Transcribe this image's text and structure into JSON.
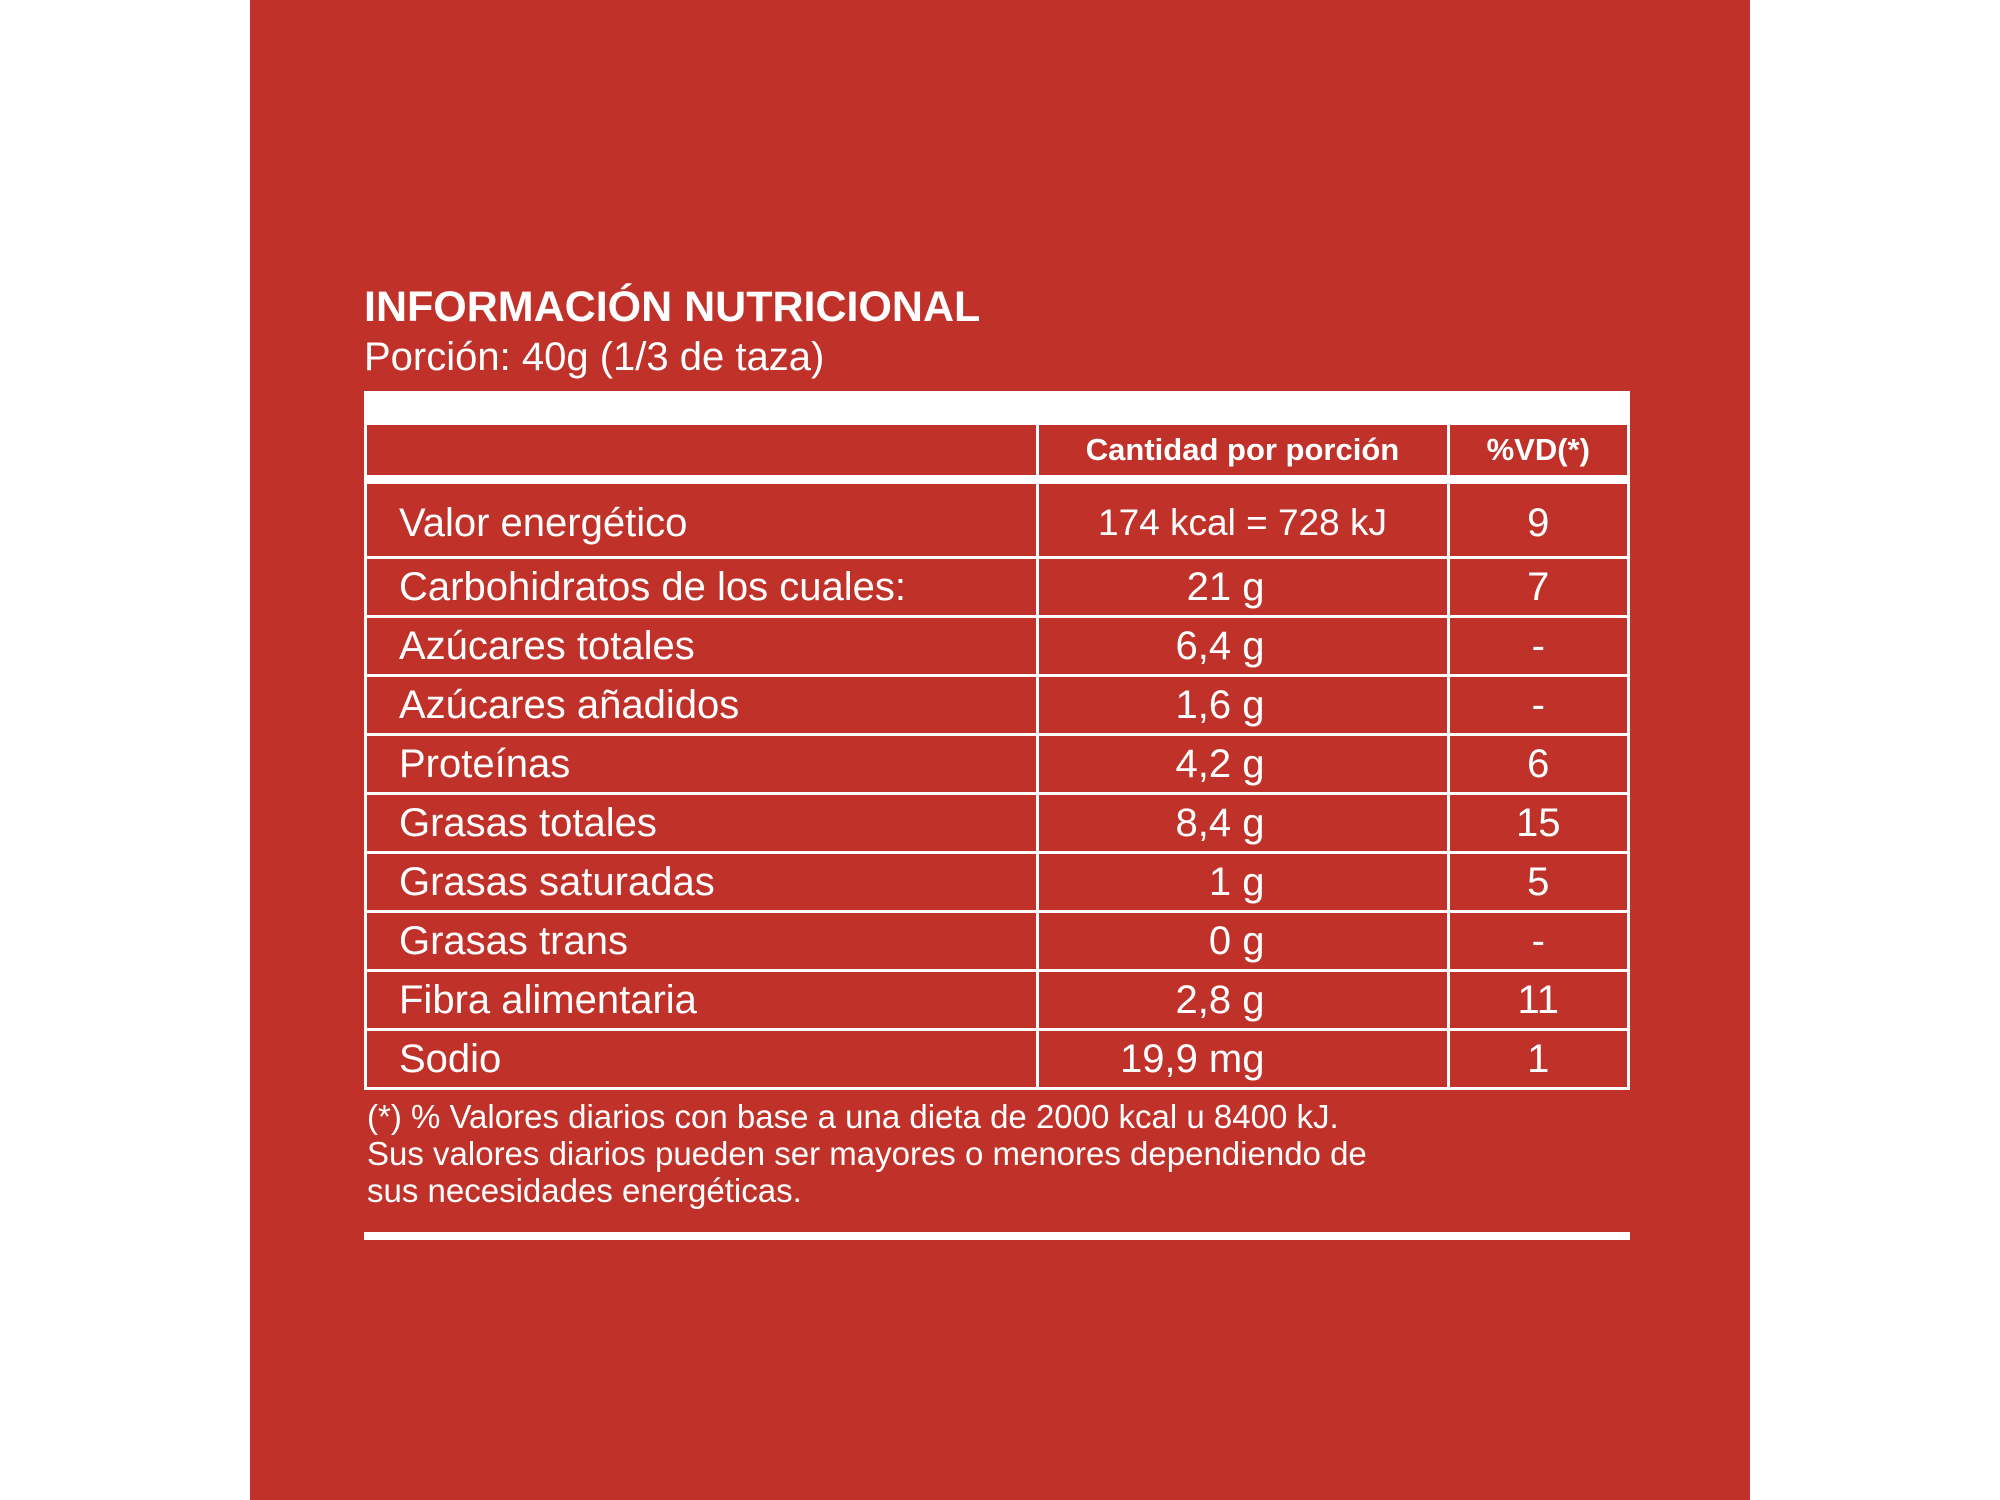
{
  "label": {
    "title": "INFORMACIÓN NUTRICIONAL",
    "portion": "Porción: 40g (1/3 de taza)"
  },
  "table": {
    "headers": [
      "",
      "Cantidad por porción",
      "%VD(*)"
    ],
    "rows": [
      {
        "name": "Valor energético",
        "amount": "174 kcal = 728 kJ",
        "vd": "9"
      },
      {
        "name": "Carbohidratos de los cuales:",
        "amount": "21 g",
        "vd": "7"
      },
      {
        "name": "Azúcares totales",
        "amount": "6,4 g",
        "vd": "-"
      },
      {
        "name": "Azúcares añadidos",
        "amount": "1,6 g",
        "vd": "-"
      },
      {
        "name": "Proteínas",
        "amount": "4,2 g",
        "vd": "6"
      },
      {
        "name": "Grasas totales",
        "amount": "8,4 g",
        "vd": "15"
      },
      {
        "name": "Grasas saturadas",
        "amount": "1 g",
        "vd": "5"
      },
      {
        "name": "Grasas trans",
        "amount": "0 g",
        "vd": "-"
      },
      {
        "name": "Fibra alimentaria",
        "amount": "2,8 g",
        "vd": "11"
      },
      {
        "name": "Sodio",
        "amount": "19,9 mg",
        "vd": "1"
      }
    ]
  },
  "footnote": [
    "(*) % Valores diarios con base a una dieta de 2000 kcal u 8400 kJ.",
    "Sus valores diarios pueden ser mayores o menores dependiendo de",
    "sus necesidades energéticas."
  ],
  "colors": {
    "background": "#c0312a",
    "text": "#ffffff"
  }
}
